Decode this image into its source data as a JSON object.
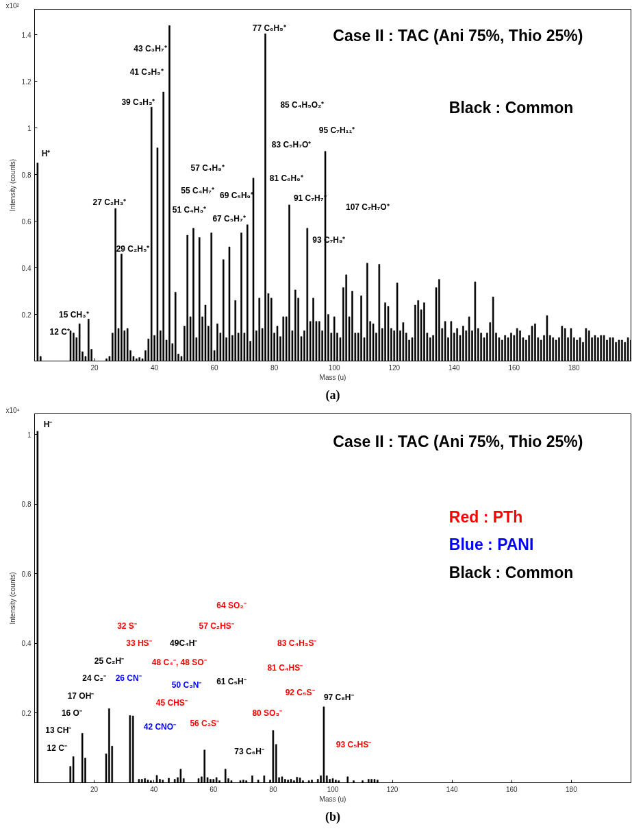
{
  "chart_data": [
    {
      "type": "bar",
      "title": "Case II : TAC (Ani 75%, Thio 25%)",
      "xlabel": "Mass (u)",
      "ylabel": "Intensity (counts)",
      "color": "#000000",
      "xlim": [
        0,
        199
      ],
      "ylim": [
        0,
        1.51
      ],
      "xticks": [
        20,
        40,
        60,
        80,
        100,
        120,
        140,
        160,
        180
      ],
      "yticks": [
        0.2,
        0.4,
        0.6,
        0.8,
        1.0,
        1.2,
        1.4
      ],
      "x": [
        1,
        2,
        12,
        13,
        14,
        15,
        16,
        17,
        18,
        19,
        24,
        25,
        26,
        27,
        28,
        29,
        30,
        31,
        32,
        33,
        34,
        35,
        36,
        37,
        38,
        39,
        40,
        41,
        42,
        43,
        44,
        45,
        46,
        47,
        48,
        49,
        50,
        51,
        52,
        53,
        54,
        55,
        56,
        57,
        58,
        59,
        60,
        61,
        62,
        63,
        64,
        65,
        66,
        67,
        68,
        69,
        70,
        71,
        72,
        73,
        74,
        75,
        76,
        77,
        78,
        79,
        80,
        81,
        82,
        83,
        84,
        85,
        86,
        87,
        88,
        89,
        90,
        91,
        92,
        93,
        94,
        95,
        96,
        97,
        98,
        99,
        100,
        101,
        102,
        103,
        104,
        105,
        106,
        107,
        108,
        109,
        110,
        111,
        112,
        113,
        114,
        115,
        116,
        117,
        118,
        119,
        120,
        121,
        122,
        123,
        124,
        125,
        126,
        127,
        128,
        129,
        130,
        131,
        132,
        133,
        134,
        135,
        136,
        137,
        138,
        139,
        140,
        141,
        142,
        143,
        144,
        145,
        146,
        147,
        148,
        149,
        150,
        151,
        152,
        153,
        154,
        155,
        156,
        157,
        158,
        159,
        160,
        161,
        162,
        163,
        164,
        165,
        166,
        167,
        168,
        169,
        170,
        171,
        172,
        173,
        174,
        175,
        176,
        177,
        178,
        179,
        180,
        181,
        182,
        183,
        184,
        185,
        186,
        187,
        188,
        189,
        190,
        191,
        192,
        193,
        194,
        195,
        196,
        197,
        198,
        199
      ],
      "values": [
        0.85,
        0.02,
        0.13,
        0.12,
        0.1,
        0.16,
        0.04,
        0.02,
        0.18,
        0.05,
        0.01,
        0.02,
        0.12,
        0.655,
        0.14,
        0.46,
        0.13,
        0.14,
        0.045,
        0.02,
        0.01,
        0.015,
        0.01,
        0.045,
        0.095,
        1.09,
        0.11,
        0.915,
        0.13,
        1.155,
        0.09,
        1.44,
        0.075,
        0.295,
        0.03,
        0.02,
        0.15,
        0.54,
        0.19,
        0.57,
        0.1,
        0.53,
        0.19,
        0.24,
        0.15,
        0.55,
        0.045,
        0.16,
        0.12,
        0.435,
        0.1,
        0.49,
        0.11,
        0.26,
        0.12,
        0.55,
        0.12,
        0.585,
        0.085,
        0.785,
        0.13,
        0.27,
        0.14,
        1.405,
        0.29,
        0.27,
        0.12,
        0.15,
        0.105,
        0.19,
        0.19,
        0.67,
        0.13,
        0.305,
        0.27,
        0.105,
        0.13,
        0.57,
        0.17,
        0.27,
        0.17,
        0.17,
        0.13,
        0.9,
        0.2,
        0.12,
        0.19,
        0.12,
        0.1,
        0.315,
        0.37,
        0.19,
        0.3,
        0.12,
        0.12,
        0.28,
        0.1,
        0.42,
        0.17,
        0.16,
        0.12,
        0.415,
        0.14,
        0.25,
        0.235,
        0.14,
        0.13,
        0.335,
        0.13,
        0.165,
        0.12,
        0.09,
        0.1,
        0.24,
        0.26,
        0.22,
        0.25,
        0.12,
        0.1,
        0.11,
        0.315,
        0.35,
        0.14,
        0.17,
        0.1,
        0.17,
        0.12,
        0.14,
        0.11,
        0.15,
        0.13,
        0.19,
        0.13,
        0.34,
        0.14,
        0.12,
        0.1,
        0.12,
        0.165,
        0.275,
        0.12,
        0.1,
        0.09,
        0.11,
        0.1,
        0.12,
        0.11,
        0.14,
        0.13,
        0.1,
        0.09,
        0.11,
        0.15,
        0.16,
        0.1,
        0.09,
        0.11,
        0.195,
        0.11,
        0.1,
        0.09,
        0.1,
        0.15,
        0.14,
        0.1,
        0.14,
        0.1,
        0.09,
        0.1,
        0.08,
        0.14,
        0.13,
        0.1,
        0.11,
        0.1,
        0.11,
        0.11,
        0.09,
        0.1,
        0.1,
        0.08,
        0.09,
        0.09,
        0.08,
        0.1,
        0.09
      ],
      "annotations": [
        "x10²",
        "Black : Common",
        "(a)",
        "H⁺",
        "12 C⁺",
        "15 CH₃⁺",
        "27 C₂H₃⁺",
        "29 C₂H₅⁺",
        "39 C₃H₃⁺",
        "41 C₃H₅⁺",
        "43 C₃H₇⁺",
        "51 C₄H₃⁺",
        "55 C₄H₇⁺",
        "57 C₄H₉⁺",
        "67 C₅H₇⁺",
        "69 C₅H₉⁺",
        "77 C₆H₅⁺",
        "81 C₆H₉⁺",
        "83 C₅H₇O⁺",
        "85 C₄H₅O₂⁺",
        "91 C₇H₇⁺",
        "93 C₇H₉⁺",
        "95 C₇H₁₁⁺",
        "107 C₇H₇O⁺"
      ]
    },
    {
      "type": "bar",
      "title": "Case II : TAC (Ani 75%, Thio 25%)",
      "xlabel": "Mass (u)",
      "ylabel": "Intensity (counts)",
      "color": "#000000",
      "xlim": [
        0,
        200
      ],
      "ylim": [
        0,
        1.06
      ],
      "xticks": [
        20,
        40,
        60,
        80,
        100,
        120,
        140,
        160,
        180
      ],
      "yticks": [
        0.2,
        0.4,
        0.6,
        0.8,
        1.0
      ],
      "x": [
        1,
        12,
        13,
        16,
        17,
        24,
        25,
        26,
        32,
        33,
        35,
        36,
        37,
        38,
        39,
        41,
        42,
        43,
        45,
        47,
        48,
        49,
        50,
        55,
        56,
        57,
        58,
        59,
        60,
        61,
        62,
        64,
        65,
        66,
        69,
        70,
        71,
        73,
        75,
        77,
        79,
        80,
        81,
        82,
        83,
        84,
        85,
        86,
        87,
        88,
        89,
        90,
        92,
        93,
        95,
        96,
        97,
        98,
        99,
        100,
        101,
        102,
        105,
        107,
        110,
        112,
        113,
        114,
        115
      ],
      "values": [
        1.01,
        0.047,
        0.075,
        0.142,
        0.071,
        0.083,
        0.213,
        0.105,
        0.193,
        0.192,
        0.01,
        0.01,
        0.012,
        0.008,
        0.006,
        0.021,
        0.01,
        0.008,
        0.013,
        0.01,
        0.015,
        0.039,
        0.012,
        0.012,
        0.017,
        0.094,
        0.015,
        0.01,
        0.01,
        0.015,
        0.006,
        0.039,
        0.012,
        0.006,
        0.006,
        0.008,
        0.006,
        0.02,
        0.008,
        0.02,
        0.008,
        0.15,
        0.11,
        0.015,
        0.017,
        0.01,
        0.008,
        0.01,
        0.006,
        0.016,
        0.014,
        0.006,
        0.006,
        0.008,
        0.01,
        0.02,
        0.218,
        0.02,
        0.01,
        0.012,
        0.008,
        0.006,
        0.017,
        0.006,
        0.006,
        0.01,
        0.01,
        0.01,
        0.008
      ],
      "annotations": [
        "x10⁴",
        "Red : PTh",
        "Blue : PANI",
        "Black : Common",
        "(b)",
        "H⁻",
        "12 C⁻",
        "13 CH⁻",
        "16 O⁻",
        "17 OH⁻",
        "24 C₂⁻",
        "25 C₂H⁻",
        "26 CN⁻",
        "32 S⁻",
        "33 HS⁻",
        "42 CNO⁻",
        "45 CHS⁻",
        "48 C₄⁻, 48 SO⁻",
        "49C₄H⁻",
        "50 C₃N⁻",
        "56 C₂S⁻",
        "57 C₂HS⁻",
        "61 C₅H⁻",
        "64 SO₂⁻",
        "73 C₆H⁻",
        "80 SO₃⁻",
        "81 C₄HS⁻",
        "83 C₄H₃S⁻",
        "92 C₅S⁻",
        "93 C₅HS⁻",
        "97 C₈H⁻"
      ]
    }
  ]
}
